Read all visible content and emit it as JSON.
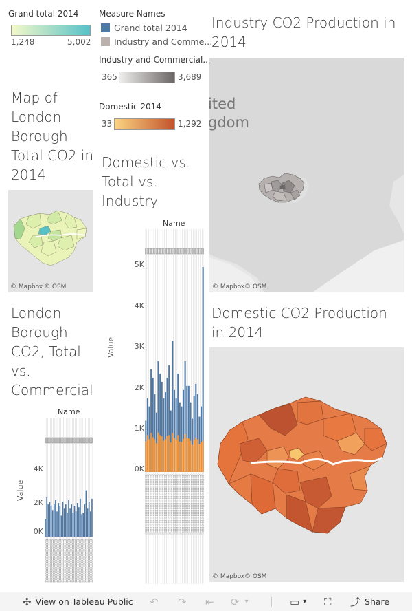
{
  "legend_grand": {
    "title": "Grand total 2014",
    "min": "1,248",
    "max": "5,002",
    "color_lo": "#f4f9c9",
    "color_hi": "#57c1c8"
  },
  "legend_measures": {
    "title": "Measure Names",
    "items": [
      {
        "label": "Grand total 2014",
        "color": "#4e79a7"
      },
      {
        "label": "Industry and Comme...",
        "color": "#bab0ac"
      }
    ]
  },
  "legend_industry": {
    "title": "Industry and Commercial...",
    "min": "365",
    "max": "3,689",
    "color_lo": "#efeded",
    "color_hi": "#6a6665"
  },
  "legend_domestic": {
    "title": "Domestic 2014",
    "min": "33",
    "max": "1,292",
    "color_lo": "#fbd482",
    "color_hi": "#c1532c"
  },
  "titles": {
    "industry_map": "Industry CO2 Production in 2014",
    "london_map": "Map of London Borough Total CO2 in 2014",
    "dom_vs_total": "Domestic vs. Total vs. Industry",
    "borough_total_comm": "London Borough CO2, Total vs. Commercial",
    "domestic_map": "Domestic CO2 Production in 2014"
  },
  "map_labels": {
    "united": "ited",
    "kingdom": "gdom"
  },
  "credits": {
    "mapbox": "© Mapbox",
    "osm": "© OSM"
  },
  "chart_common": {
    "name_header": "Name",
    "value_label": "Value"
  },
  "chart_data": [
    {
      "type": "bar",
      "title": "Domestic vs. Total vs. Industry",
      "xlabel": "Name",
      "ylabel": "Value",
      "ylim": [
        0,
        5000
      ],
      "ticks": [
        "5K",
        "4K",
        "3K",
        "2K",
        "1K",
        "0K"
      ],
      "series": [
        {
          "name": "Grand total 2014",
          "values": [
            1250,
            1800,
            1600,
            2500,
            2300,
            1900,
            1450,
            2700,
            2400,
            2200,
            1800,
            1950,
            2300,
            2600,
            1500,
            3200,
            2000,
            1800,
            2400,
            1700,
            1600,
            2000,
            2700,
            2100,
            2100,
            1700,
            1300,
            1850,
            2150,
            1900,
            1350,
            1600,
            5000
          ]
        },
        {
          "name": "Domestic 2014",
          "values": [
            750,
            900,
            800,
            950,
            850,
            800,
            700,
            960,
            900,
            870,
            760,
            800,
            880,
            900,
            720,
            950,
            830,
            780,
            900,
            740,
            730,
            810,
            920,
            830,
            820,
            760,
            660,
            790,
            840,
            800,
            680,
            730,
            760
          ]
        }
      ]
    },
    {
      "type": "bar",
      "title": "London Borough CO2, Total vs. Commercial",
      "xlabel": "Name",
      "ylabel": "Value",
      "ylim": [
        0,
        5000
      ],
      "ticks": [
        "4K",
        "2K",
        "0K"
      ],
      "series": [
        {
          "name": "Grand total 2014",
          "values": [
            1250,
            2800,
            2300,
            2500,
            2200,
            1900,
            2300,
            2600,
            1800,
            2400,
            2200,
            1500,
            2500,
            2000,
            2300,
            1700,
            2600,
            2000,
            2300,
            1700,
            2200,
            1800,
            2400,
            2100,
            2700,
            1600,
            1700,
            2300,
            3300,
            2000,
            2500,
            1800,
            2700
          ]
        }
      ]
    }
  ]
}
